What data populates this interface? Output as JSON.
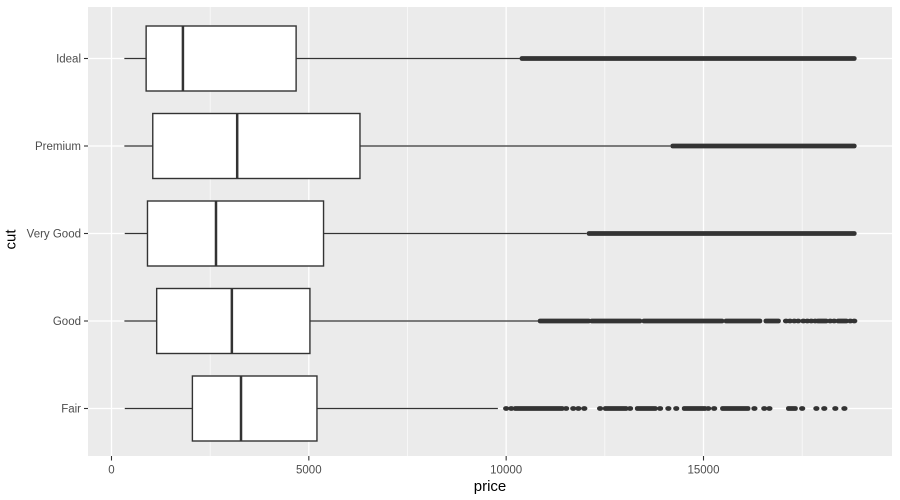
{
  "chart_data": {
    "type": "boxplot",
    "orientation": "horizontal",
    "title": "",
    "xlabel": "price",
    "ylabel": "cut",
    "x_major_ticks": [
      0,
      5000,
      10000,
      15000
    ],
    "x_tick_labels": [
      "0",
      "5000",
      "10000",
      "15000"
    ],
    "x_minor_ticks": [
      2500,
      7500,
      12500,
      17500
    ],
    "x_domain": [
      -595,
      19776
    ],
    "grid": "major-and-minor",
    "legend": "none",
    "categories": [
      "Ideal",
      "Premium",
      "Very Good",
      "Good",
      "Fair"
    ],
    "boxes": [
      {
        "cut": "Ideal",
        "whisker_low": 326,
        "q1": 878,
        "median": 1810,
        "q3": 4678,
        "whisker_high": 10350,
        "outlier_segments": [
          [
            10400,
            18820
          ]
        ],
        "outlier_dots": []
      },
      {
        "cut": "Premium",
        "whisker_low": 326,
        "q1": 1046,
        "median": 3185,
        "q3": 6296,
        "whisker_high": 14160,
        "outlier_segments": [
          [
            14220,
            18820
          ]
        ],
        "outlier_dots": []
      },
      {
        "cut": "Very Good",
        "whisker_low": 336,
        "q1": 912,
        "median": 2648,
        "q3": 5373,
        "whisker_high": 12040,
        "outlier_segments": [
          [
            12100,
            18820
          ]
        ],
        "outlier_dots": []
      },
      {
        "cut": "Good",
        "whisker_low": 327,
        "q1": 1145,
        "median": 3050,
        "q3": 5028,
        "whisker_high": 10810,
        "outlier_segments": [
          [
            10860,
            12090
          ],
          [
            12170,
            13390
          ],
          [
            13490,
            15470
          ],
          [
            15570,
            16430
          ],
          [
            16580,
            16900
          ],
          [
            17900,
            18110
          ],
          [
            18410,
            18620
          ]
        ],
        "outlier_dots": [
          17090,
          17190,
          17300,
          17400,
          17530,
          17630,
          17730,
          17830,
          18210,
          18310,
          18720,
          18820
        ]
      },
      {
        "cut": "Fair",
        "whisker_low": 337,
        "q1": 2050,
        "median": 3282,
        "q3": 5206,
        "whisker_high": 9790,
        "outlier_segments": [
          [
            10230,
            11420
          ],
          [
            12510,
            13040
          ],
          [
            13320,
            13780
          ],
          [
            14510,
            15040
          ],
          [
            15480,
            16130
          ],
          [
            17150,
            17330
          ]
        ],
        "outlier_dots": [
          10000,
          10130,
          11520,
          11700,
          11830,
          11980,
          12380,
          13140,
          13900,
          14110,
          14310,
          15120,
          15270,
          16290,
          16540,
          16670,
          17500,
          17860,
          18060,
          18340,
          18570
        ]
      }
    ],
    "colors": {
      "panel_background": "#EBEBEB",
      "grid_major": "#FFFFFF",
      "grid_minor": "#FFFFFF",
      "box_fill": "#FFFFFF",
      "box_stroke": "#333333",
      "median_stroke": "#333333",
      "whisker_stroke": "#333333",
      "outlier": "#333333",
      "tick_mark": "#333333",
      "tick_label": "#4D4D4D",
      "axis_title": "#000000"
    }
  }
}
